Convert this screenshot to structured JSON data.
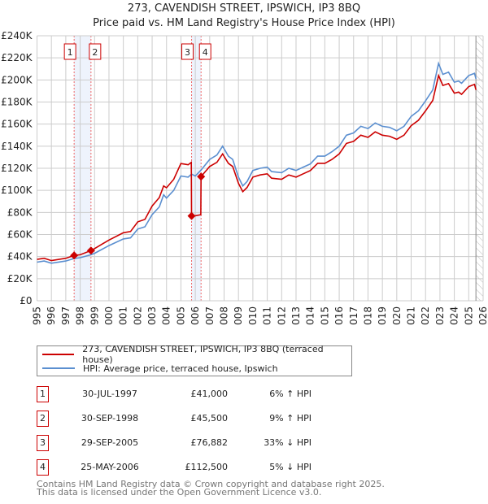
{
  "chart_data": {
    "type": "line",
    "title": "273, CAVENDISH STREET, IPSWICH, IP3 8BQ",
    "subtitle": "Price paid vs. HM Land Registry's House Price Index (HPI)",
    "xlim": [
      1995,
      2026
    ],
    "ylim": [
      0,
      240000
    ],
    "x_ticks": [
      "1995",
      "1996",
      "1997",
      "1998",
      "1999",
      "2000",
      "2001",
      "2002",
      "2003",
      "2004",
      "2005",
      "2006",
      "2007",
      "2008",
      "2009",
      "2010",
      "2011",
      "2012",
      "2013",
      "2014",
      "2015",
      "2016",
      "2017",
      "2018",
      "2019",
      "2020",
      "2021",
      "2022",
      "2023",
      "2024",
      "2025",
      "2026"
    ],
    "y_ticks": [
      {
        "v": 0,
        "label": "£0"
      },
      {
        "v": 20000,
        "label": "£20K"
      },
      {
        "v": 40000,
        "label": "£40K"
      },
      {
        "v": 60000,
        "label": "£60K"
      },
      {
        "v": 80000,
        "label": "£80K"
      },
      {
        "v": 100000,
        "label": "£100K"
      },
      {
        "v": 120000,
        "label": "£120K"
      },
      {
        "v": 140000,
        "label": "£140K"
      },
      {
        "v": 160000,
        "label": "£160K"
      },
      {
        "v": 180000,
        "label": "£180K"
      },
      {
        "v": 200000,
        "label": "£200K"
      },
      {
        "v": 220000,
        "label": "£220K"
      },
      {
        "v": 240000,
        "label": "£240K"
      }
    ],
    "grid": true,
    "forecast_hatch_from": 2025.5,
    "series": [
      {
        "name": "273, CAVENDISH STREET, IPSWICH, IP3 8BQ (terraced house)",
        "color": "#cc0000",
        "x": [
          1995,
          1995.5,
          1996,
          1997,
          1997.58,
          1998,
          1998.75,
          1999,
          2000,
          2001,
          2001.5,
          2002,
          2002.5,
          2003,
          2003.5,
          2003.8,
          2004,
          2004.5,
          2005,
          2005.5,
          2005.72,
          2005.74,
          2006,
          2006.38,
          2006.4,
          2007,
          2007.5,
          2007.9,
          2008.3,
          2008.6,
          2009,
          2009.3,
          2009.6,
          2010,
          2010.5,
          2011,
          2011.3,
          2012,
          2012.5,
          2013,
          2013.5,
          2014,
          2014.5,
          2015,
          2015.5,
          2016,
          2016.5,
          2017,
          2017.5,
          2018,
          2018.5,
          2019,
          2019.5,
          2020,
          2020.5,
          2021,
          2021.5,
          2022,
          2022.5,
          2022.9,
          2023.2,
          2023.6,
          2024,
          2024.3,
          2024.5,
          2025,
          2025.4,
          2025.5
        ],
        "y": [
          37500,
          38500,
          36400,
          38500,
          41000,
          41700,
          45500,
          47300,
          55000,
          61600,
          62700,
          71500,
          73700,
          85800,
          93500,
          104000,
          102300,
          110000,
          124300,
          123200,
          125400,
          76882,
          77000,
          78000,
          112500,
          121600,
          125400,
          133000,
          124500,
          121600,
          106400,
          98800,
          102600,
          112000,
          114000,
          115000,
          111000,
          110000,
          114000,
          112000,
          115000,
          118000,
          124500,
          124500,
          128000,
          133000,
          142500,
          144400,
          150000,
          148000,
          153000,
          150000,
          149000,
          146300,
          150000,
          158600,
          163400,
          172000,
          181500,
          204000,
          195000,
          196700,
          188000,
          189000,
          187000,
          194000,
          196000,
          191000
        ]
      },
      {
        "name": "HPI: Average price, terraced house, Ipswich",
        "color": "#5b8fd0",
        "x": [
          1995,
          1995.5,
          1996,
          1997,
          1997.58,
          1998,
          1998.75,
          1999,
          2000,
          2001,
          2001.5,
          2002,
          2002.5,
          2003,
          2003.5,
          2003.8,
          2004,
          2004.5,
          2005,
          2005.5,
          2005.74,
          2006,
          2006.4,
          2007,
          2007.5,
          2007.9,
          2008.3,
          2008.6,
          2009,
          2009.3,
          2009.6,
          2010,
          2010.5,
          2011,
          2011.3,
          2012,
          2012.5,
          2013,
          2013.5,
          2014,
          2014.5,
          2015,
          2015.5,
          2016,
          2016.5,
          2017,
          2017.5,
          2018,
          2018.5,
          2019,
          2019.5,
          2020,
          2020.5,
          2021,
          2021.5,
          2022,
          2022.5,
          2022.9,
          2023.2,
          2023.6,
          2024,
          2024.3,
          2024.5,
          2025,
          2025.4,
          2025.5
        ],
        "y": [
          35000,
          36000,
          34000,
          36000,
          38300,
          39000,
          41700,
          43000,
          50000,
          56000,
          57000,
          65000,
          67000,
          78000,
          85000,
          96000,
          93000,
          100000,
          113000,
          112000,
          114700,
          113000,
          118400,
          128000,
          132000,
          140000,
          131000,
          128000,
          112000,
          104000,
          108000,
          118000,
          120000,
          121000,
          117000,
          116000,
          120000,
          118000,
          121000,
          124000,
          131000,
          131000,
          135000,
          140000,
          150000,
          152000,
          158000,
          156000,
          161000,
          158000,
          157000,
          154000,
          158000,
          167000,
          172000,
          181000,
          191000,
          215000,
          205000,
          207000,
          198000,
          199000,
          197000,
          204000,
          206000,
          201000
        ]
      }
    ],
    "sales": [
      {
        "id": "1",
        "x": 1997.58,
        "price": 41000
      },
      {
        "id": "2",
        "x": 1998.75,
        "price": 45500
      },
      {
        "id": "3",
        "x": 2005.74,
        "price": 76882
      },
      {
        "id": "4",
        "x": 2006.4,
        "price": 112500
      }
    ],
    "shaded_ranges": [
      [
        1997.58,
        1998.75
      ],
      [
        2005.74,
        2006.4
      ]
    ]
  },
  "legend": {
    "property": "273, CAVENDISH STREET, IPSWICH, IP3 8BQ (terraced house)",
    "hpi": "HPI: Average price, terraced house, Ipswich"
  },
  "transactions": [
    {
      "id": "1",
      "date": "30-JUL-1997",
      "price": "£41,000",
      "hpi": "6% ↑ HPI"
    },
    {
      "id": "2",
      "date": "30-SEP-1998",
      "price": "£45,500",
      "hpi": "9% ↑ HPI"
    },
    {
      "id": "3",
      "date": "29-SEP-2005",
      "price": "£76,882",
      "hpi": "33% ↓ HPI"
    },
    {
      "id": "4",
      "date": "25-MAY-2006",
      "price": "£112,500",
      "hpi": "5% ↓ HPI"
    }
  ],
  "footer": {
    "line1": "Contains HM Land Registry data © Crown copyright and database right 2025.",
    "line2": "This data is licensed under the Open Government Licence v3.0."
  }
}
